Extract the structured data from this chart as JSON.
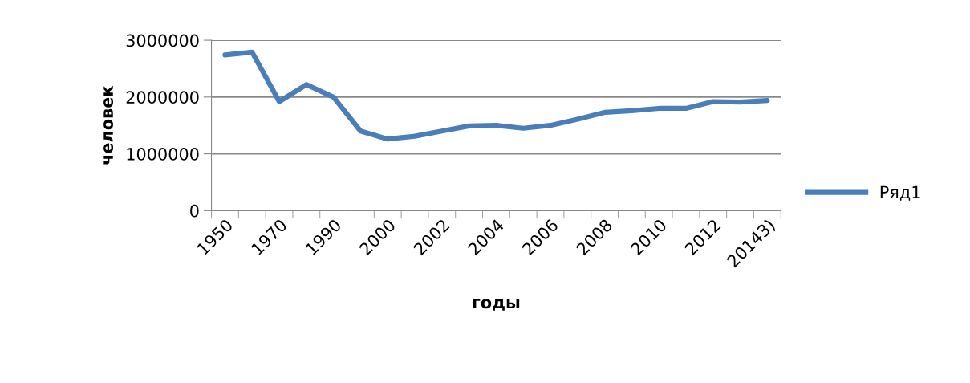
{
  "chart_data": {
    "type": "line",
    "xlabel": "годы",
    "ylabel": "человек",
    "categories": [
      "1950",
      null,
      "1970",
      null,
      "1990",
      null,
      "2000",
      null,
      "2002",
      null,
      "2004",
      null,
      "2006",
      null,
      "2008",
      null,
      "2010",
      null,
      "2012",
      null,
      "20143)"
    ],
    "series": [
      {
        "name": "Ряд1",
        "color": "#4a7ebb",
        "values": [
          2740000,
          2790000,
          1920000,
          2220000,
          2000000,
          1400000,
          1260000,
          1310000,
          1400000,
          1490000,
          1500000,
          1450000,
          1500000,
          1610000,
          1730000,
          1760000,
          1800000,
          1800000,
          1920000,
          1910000,
          1940000
        ]
      }
    ],
    "ylim": [
      0,
      3000000
    ],
    "yticks": [
      0,
      1000000,
      2000000,
      3000000
    ],
    "grid": "y",
    "legend": "right",
    "marker": "none",
    "line_style": "solid"
  }
}
